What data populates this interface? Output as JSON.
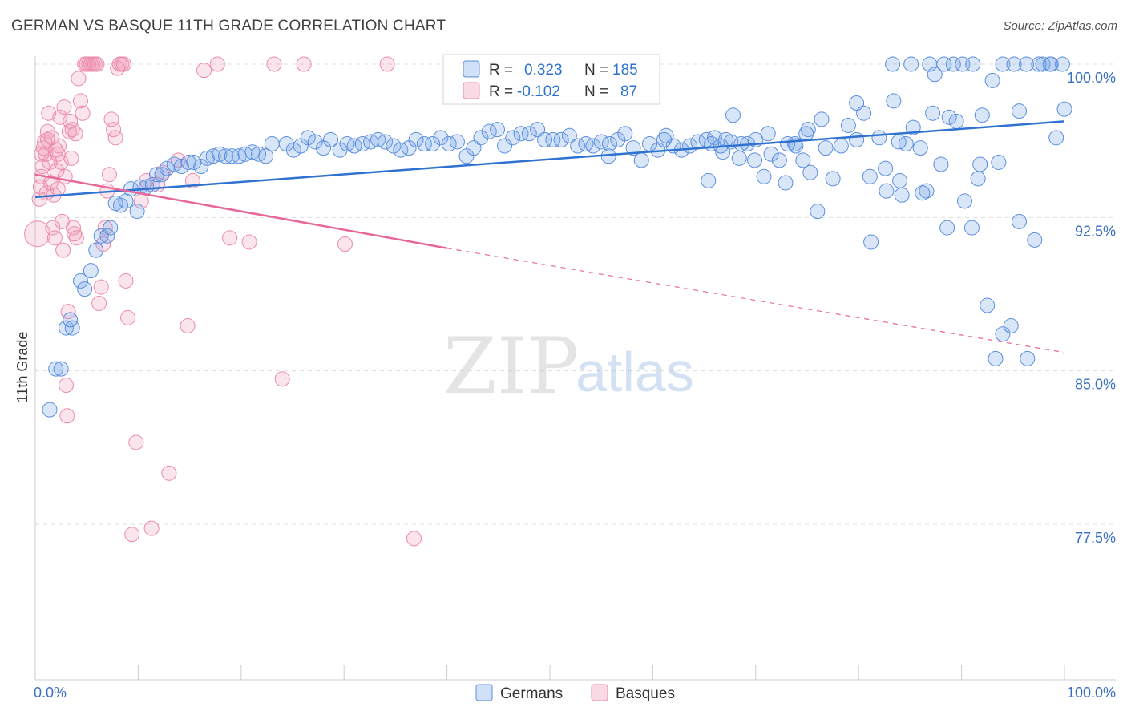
{
  "title": "GERMAN VS BASQUE 11TH GRADE CORRELATION CHART",
  "source": "Source: ZipAtlas.com",
  "watermark": {
    "zip": "ZIP",
    "atlas": "atlas"
  },
  "colors": {
    "german": "#5b8ee0",
    "german_fill": "rgba(120,165,230,0.28)",
    "german_line": "#2f72cf",
    "basque": "#ec8aaa",
    "basque_fill": "rgba(240,150,180,0.25)",
    "basque_line": "#e8689a",
    "tick": "#3a6fc4",
    "grid": "#dddddd"
  },
  "legend": {
    "r_label": "R =",
    "n_label": "N =",
    "german": {
      "r": "0.323",
      "n": "185"
    },
    "basque": {
      "r": "-0.102",
      "n": "87"
    }
  },
  "chart_data": {
    "type": "scatter",
    "title": "GERMAN VS BASQUE 11TH GRADE CORRELATION CHART",
    "xlabel": "",
    "ylabel": "11th Grade",
    "xlim": [
      0,
      100
    ],
    "ylim": [
      71.8,
      101.2
    ],
    "x_tick_labels": [
      "0.0%",
      "100.0%"
    ],
    "y_ticks": [
      100.0,
      92.5,
      85.0,
      77.5
    ],
    "y_tick_labels": [
      "100.0%",
      "92.5%",
      "85.0%",
      "77.5%"
    ],
    "grid": "horizontal dashed",
    "legend_position": "top-center",
    "series": [
      {
        "name": "Germans",
        "trend": {
          "x": [
            0,
            100
          ],
          "y": [
            93.5,
            97.2
          ],
          "style": "solid"
        },
        "points": [
          [
            1.4,
            83.1
          ],
          [
            2.0,
            85.1
          ],
          [
            2.5,
            85.1
          ],
          [
            3.0,
            87.1
          ],
          [
            3.6,
            87.1
          ],
          [
            3.4,
            87.5
          ],
          [
            4.4,
            89.4
          ],
          [
            4.8,
            89.0
          ],
          [
            5.4,
            89.9
          ],
          [
            5.9,
            90.9
          ],
          [
            6.4,
            91.6
          ],
          [
            7.0,
            91.6
          ],
          [
            7.3,
            92.0
          ],
          [
            7.8,
            93.2
          ],
          [
            8.3,
            93.1
          ],
          [
            8.8,
            93.3
          ],
          [
            9.3,
            93.9
          ],
          [
            9.9,
            92.8
          ],
          [
            10.2,
            94.0
          ],
          [
            10.8,
            94.0
          ],
          [
            11.4,
            94.1
          ],
          [
            11.8,
            94.6
          ],
          [
            12.3,
            94.6
          ],
          [
            12.8,
            94.9
          ],
          [
            13.5,
            95.1
          ],
          [
            14.2,
            95.0
          ],
          [
            14.9,
            95.2
          ],
          [
            15.4,
            95.2
          ],
          [
            16.1,
            95.0
          ],
          [
            16.7,
            95.4
          ],
          [
            17.3,
            95.5
          ],
          [
            17.9,
            95.6
          ],
          [
            18.5,
            95.5
          ],
          [
            19.1,
            95.5
          ],
          [
            19.8,
            95.5
          ],
          [
            20.4,
            95.6
          ],
          [
            21.1,
            95.7
          ],
          [
            21.7,
            95.6
          ],
          [
            22.4,
            95.5
          ],
          [
            23.0,
            96.1
          ],
          [
            24.4,
            96.1
          ],
          [
            25.1,
            95.8
          ],
          [
            25.8,
            96.0
          ],
          [
            26.5,
            96.4
          ],
          [
            27.2,
            96.2
          ],
          [
            28.0,
            95.9
          ],
          [
            28.7,
            96.3
          ],
          [
            29.6,
            95.8
          ],
          [
            30.3,
            96.1
          ],
          [
            31.0,
            96.0
          ],
          [
            31.8,
            96.1
          ],
          [
            32.6,
            96.2
          ],
          [
            33.3,
            96.3
          ],
          [
            34.0,
            96.2
          ],
          [
            34.8,
            96.0
          ],
          [
            35.5,
            95.8
          ],
          [
            36.3,
            95.9
          ],
          [
            37.0,
            96.3
          ],
          [
            37.8,
            96.1
          ],
          [
            38.6,
            96.1
          ],
          [
            39.4,
            96.4
          ],
          [
            40.2,
            96.1
          ],
          [
            41.0,
            96.2
          ],
          [
            41.9,
            95.5
          ],
          [
            42.6,
            95.9
          ],
          [
            43.3,
            96.4
          ],
          [
            44.1,
            96.7
          ],
          [
            44.9,
            96.8
          ],
          [
            45.6,
            96.0
          ],
          [
            46.4,
            96.4
          ],
          [
            47.2,
            96.6
          ],
          [
            48.0,
            96.6
          ],
          [
            48.8,
            96.8
          ],
          [
            49.5,
            96.3
          ],
          [
            50.3,
            96.3
          ],
          [
            51.1,
            96.3
          ],
          [
            51.9,
            96.5
          ],
          [
            52.7,
            96.0
          ],
          [
            53.5,
            96.1
          ],
          [
            54.2,
            96.0
          ],
          [
            55.0,
            96.2
          ],
          [
            55.8,
            96.1
          ],
          [
            56.6,
            96.3
          ],
          [
            57.3,
            96.6
          ],
          [
            58.1,
            95.9
          ],
          [
            58.9,
            95.3
          ],
          [
            59.7,
            96.1
          ],
          [
            60.5,
            95.8
          ],
          [
            61.3,
            96.5
          ],
          [
            62.0,
            96.0
          ],
          [
            62.8,
            95.8
          ],
          [
            63.6,
            96.0
          ],
          [
            64.4,
            96.2
          ],
          [
            65.2,
            96.3
          ],
          [
            66.0,
            96.4
          ],
          [
            66.8,
            95.7
          ],
          [
            67.6,
            96.2
          ],
          [
            68.4,
            95.4
          ],
          [
            69.2,
            96.1
          ],
          [
            70.0,
            96.3
          ],
          [
            70.8,
            94.5
          ],
          [
            71.5,
            95.6
          ],
          [
            72.3,
            95.3
          ],
          [
            73.1,
            96.1
          ],
          [
            73.8,
            96.1
          ],
          [
            74.6,
            95.3
          ],
          [
            75.3,
            94.7
          ],
          [
            76.0,
            92.8
          ],
          [
            76.8,
            95.9
          ],
          [
            77.5,
            94.4
          ],
          [
            78.3,
            96.0
          ],
          [
            79.0,
            97.0
          ],
          [
            79.8,
            96.3
          ],
          [
            80.5,
            97.6
          ],
          [
            81.2,
            91.3
          ],
          [
            82.0,
            96.4
          ],
          [
            82.7,
            93.8
          ],
          [
            83.4,
            98.2
          ],
          [
            84.0,
            94.3
          ],
          [
            84.6,
            96.1
          ],
          [
            85.3,
            96.9
          ],
          [
            86.0,
            95.9
          ],
          [
            86.6,
            93.8
          ],
          [
            87.2,
            97.6
          ],
          [
            88.0,
            95.1
          ],
          [
            88.8,
            97.4
          ],
          [
            89.5,
            97.2
          ],
          [
            90.3,
            93.3
          ],
          [
            91.0,
            92.0
          ],
          [
            91.8,
            95.1
          ],
          [
            92.5,
            88.2
          ],
          [
            93.3,
            85.6
          ],
          [
            94.0,
            86.8
          ],
          [
            94.8,
            87.2
          ],
          [
            95.6,
            97.7
          ],
          [
            96.4,
            85.6
          ],
          [
            97.1,
            91.4
          ],
          [
            97.9,
            100.0
          ],
          [
            98.6,
            100.0
          ],
          [
            99.2,
            96.4
          ],
          [
            99.8,
            100.0
          ],
          [
            100.0,
            97.8
          ],
          [
            87.4,
            99.5
          ],
          [
            88.3,
            100.0
          ],
          [
            89.2,
            100.0
          ],
          [
            90.1,
            100.0
          ],
          [
            91.1,
            100.0
          ],
          [
            92.0,
            97.5
          ],
          [
            93.0,
            99.2
          ],
          [
            94.0,
            100.0
          ],
          [
            95.1,
            100.0
          ],
          [
            96.3,
            100.0
          ],
          [
            97.5,
            100.0
          ],
          [
            98.7,
            100.0
          ],
          [
            83.3,
            100.0
          ],
          [
            85.1,
            100.0
          ],
          [
            86.9,
            100.0
          ],
          [
            65.7,
            96.1
          ],
          [
            73.9,
            96.0
          ],
          [
            55.7,
            95.5
          ],
          [
            61.1,
            96.3
          ],
          [
            67.1,
            96.3
          ],
          [
            75.1,
            96.8
          ],
          [
            79.8,
            98.1
          ],
          [
            81.1,
            94.5
          ],
          [
            84.2,
            93.6
          ],
          [
            86.2,
            93.7
          ],
          [
            88.6,
            92.0
          ],
          [
            91.6,
            94.4
          ],
          [
            93.6,
            95.2
          ],
          [
            95.6,
            92.3
          ],
          [
            83.9,
            96.2
          ],
          [
            82.6,
            94.9
          ],
          [
            76.4,
            97.3
          ],
          [
            74.9,
            96.6
          ],
          [
            72.9,
            94.2
          ],
          [
            71.2,
            96.6
          ],
          [
            69.9,
            95.3
          ],
          [
            68.6,
            96.1
          ],
          [
            67.8,
            97.5
          ],
          [
            66.6,
            96.0
          ],
          [
            65.4,
            94.3
          ]
        ]
      },
      {
        "name": "Basques",
        "trend": {
          "x": [
            0,
            40
          ],
          "y": [
            94.6,
            91.0
          ],
          "extended_to": [
            100,
            85.9
          ],
          "style": "solid then dashed"
        },
        "points": [
          [
            0.2,
            91.7
          ],
          [
            0.4,
            93.4
          ],
          [
            0.5,
            94.0
          ],
          [
            0.6,
            94.5
          ],
          [
            0.7,
            95.0
          ],
          [
            0.8,
            95.9
          ],
          [
            0.9,
            96.2
          ],
          [
            1.0,
            95.6
          ],
          [
            1.1,
            93.7
          ],
          [
            1.2,
            96.7
          ],
          [
            1.3,
            97.6
          ],
          [
            1.4,
            95.2
          ],
          [
            1.5,
            94.2
          ],
          [
            1.6,
            96.4
          ],
          [
            1.7,
            92.0
          ],
          [
            1.8,
            93.6
          ],
          [
            1.9,
            91.5
          ],
          [
            2.0,
            95.8
          ],
          [
            2.1,
            94.8
          ],
          [
            2.2,
            93.9
          ],
          [
            2.3,
            96.0
          ],
          [
            2.4,
            97.4
          ],
          [
            2.5,
            95.2
          ],
          [
            2.6,
            92.3
          ],
          [
            2.7,
            90.9
          ],
          [
            2.8,
            97.9
          ],
          [
            2.9,
            94.5
          ],
          [
            3.0,
            84.3
          ],
          [
            3.1,
            82.8
          ],
          [
            3.2,
            87.9
          ],
          [
            3.3,
            96.7
          ],
          [
            3.4,
            97.2
          ],
          [
            3.5,
            95.4
          ],
          [
            3.6,
            96.8
          ],
          [
            3.7,
            92.0
          ],
          [
            3.8,
            91.7
          ],
          [
            3.9,
            96.6
          ],
          [
            4.0,
            91.5
          ],
          [
            4.2,
            99.3
          ],
          [
            4.4,
            98.2
          ],
          [
            4.6,
            97.6
          ],
          [
            4.8,
            100.0
          ],
          [
            5.0,
            100.0
          ],
          [
            5.2,
            100.0
          ],
          [
            5.4,
            100.0
          ],
          [
            5.6,
            100.0
          ],
          [
            5.8,
            100.0
          ],
          [
            6.0,
            100.0
          ],
          [
            6.2,
            88.3
          ],
          [
            6.4,
            89.1
          ],
          [
            6.6,
            91.2
          ],
          [
            6.8,
            92.0
          ],
          [
            7.0,
            93.8
          ],
          [
            7.2,
            94.6
          ],
          [
            7.4,
            97.3
          ],
          [
            7.6,
            96.8
          ],
          [
            7.8,
            96.4
          ],
          [
            8.0,
            99.8
          ],
          [
            8.2,
            100.0
          ],
          [
            8.4,
            100.0
          ],
          [
            8.6,
            100.0
          ],
          [
            8.8,
            89.4
          ],
          [
            9.0,
            87.6
          ],
          [
            9.4,
            77.0
          ],
          [
            9.8,
            81.5
          ],
          [
            10.3,
            93.3
          ],
          [
            10.8,
            94.3
          ],
          [
            11.3,
            77.3
          ],
          [
            11.9,
            94.1
          ],
          [
            12.4,
            94.7
          ],
          [
            13.0,
            80.0
          ],
          [
            13.9,
            95.3
          ],
          [
            14.8,
            87.2
          ],
          [
            15.3,
            94.3
          ],
          [
            16.4,
            99.7
          ],
          [
            17.7,
            100.0
          ],
          [
            18.9,
            91.5
          ],
          [
            20.8,
            91.3
          ],
          [
            23.2,
            100.0
          ],
          [
            24.0,
            84.6
          ],
          [
            26.1,
            100.0
          ],
          [
            30.1,
            91.2
          ],
          [
            34.2,
            100.0
          ],
          [
            36.8,
            76.8
          ],
          [
            41.5,
            100.0
          ],
          [
            0.6,
            95.6
          ],
          [
            1.2,
            96.3
          ],
          [
            2.2,
            95.6
          ]
        ]
      }
    ]
  },
  "bottom_legend": {
    "germans": "Germans",
    "basques": "Basques"
  }
}
